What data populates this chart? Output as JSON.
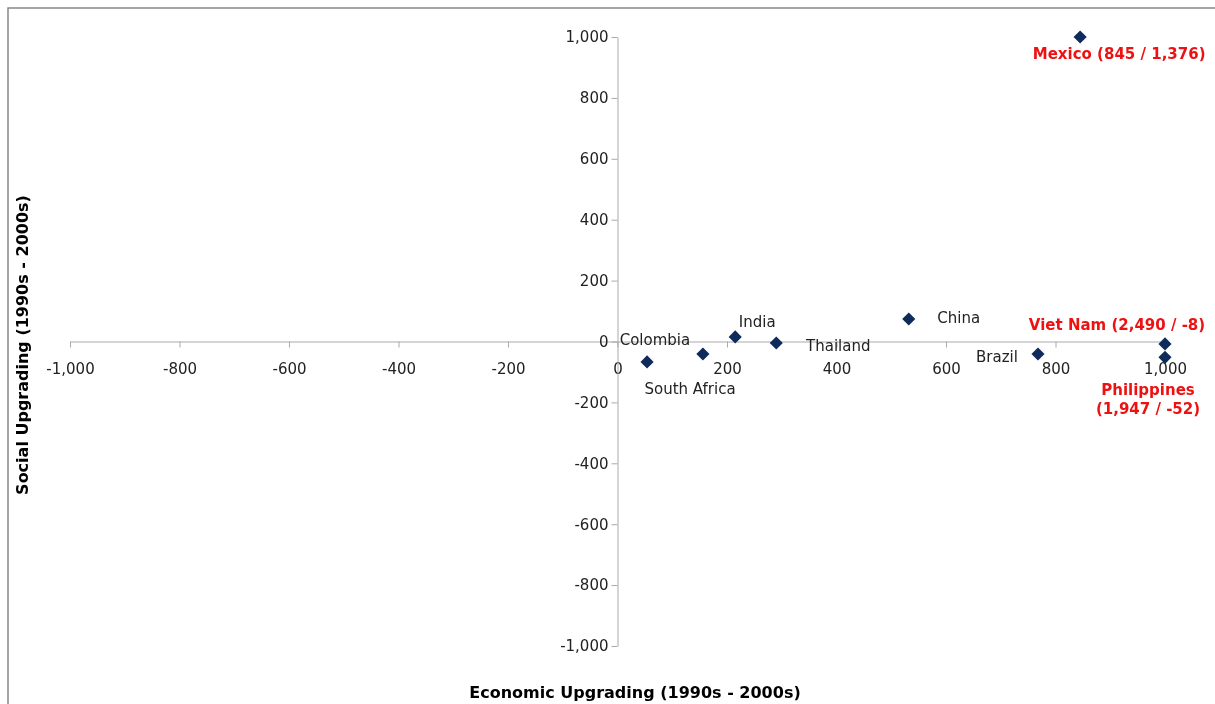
{
  "chart_data": {
    "type": "scatter",
    "xlabel": "Economic Upgrading (1990s - 2000s)",
    "ylabel": "Social Upgrading (1990s - 2000s)",
    "x": [
      54,
      156,
      215,
      290,
      532,
      768,
      845,
      1000,
      1000
    ],
    "series": [
      {
        "color": "#0f2b5b",
        "values": [
          -67,
          -41,
          15,
          -5,
          74,
          -41,
          1000,
          -8,
          -52
        ]
      }
    ],
    "marker": "diamond",
    "xlim": [
      -1000,
      1000
    ],
    "xticks": [
      {
        "value": -1000,
        "label": "-1,000"
      },
      -800,
      -600,
      -400,
      -200,
      0,
      200,
      400,
      600,
      800,
      {
        "value": 1000,
        "label": "1,000"
      }
    ],
    "ylim": [
      -1000,
      1000
    ],
    "yticks": [
      {
        "value": -1000,
        "label": "-1,000"
      },
      -800,
      -600,
      -400,
      -200,
      0,
      200,
      400,
      600,
      800,
      {
        "value": 1000,
        "label": "1,000"
      }
    ],
    "annotations": [
      {
        "text": "South Africa",
        "x": 54,
        "y": -67
      },
      {
        "text": "Colombia",
        "x": 156,
        "y": -41
      },
      {
        "text": "India",
        "x": 215,
        "y": 15
      },
      {
        "text": "Thailand",
        "x": 290,
        "y": -5
      },
      {
        "text": "China",
        "x": 532,
        "y": 74
      },
      {
        "text": "Brazil",
        "x": 768,
        "y": -41
      },
      {
        "text": "Mexico (845 / 1,376)",
        "x": 845,
        "y": 1000
      },
      {
        "text": "Viet Nam (2,490 / -8)",
        "x": 1000,
        "y": -8
      },
      {
        "text": "Philippines\n(1,947 / -52)",
        "x": 1000,
        "y": -52
      }
    ]
  }
}
